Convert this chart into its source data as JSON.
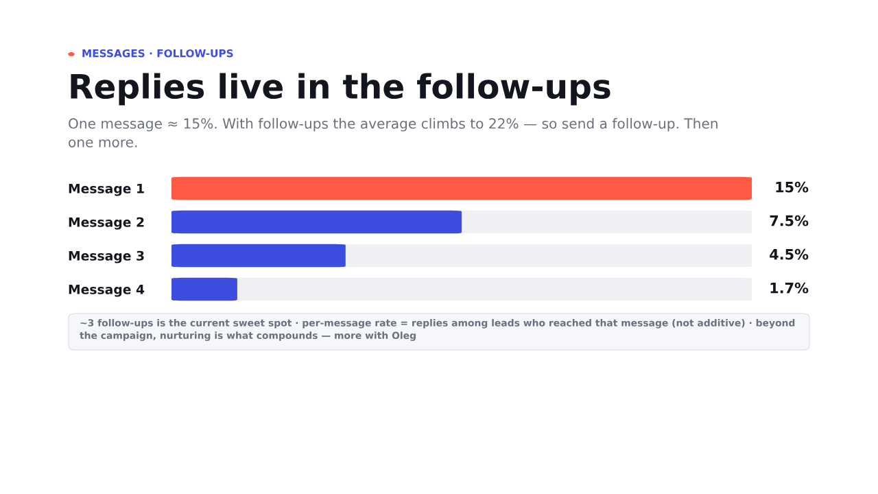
{
  "chart_data": {
    "type": "bar",
    "orientation": "horizontal",
    "title": "Replies live in the follow-ups",
    "subtitle": "One message ≈ 15%. With follow-ups the average climbs to 22% — so send a follow-up. Then one more.",
    "annotations": [
      "MESSAGES · FOLLOW-UPS",
      "~3 follow-ups is the current sweet spot · per-message rate = replies among leads who reached that message (not additive) · beyond the campaign, nurturing is what compounds — more with Oleg"
    ],
    "categories": [
      "Message 1",
      "Message 2",
      "Message 3",
      "Message 4"
    ],
    "values": [
      15,
      7.5,
      4.5,
      1.7
    ],
    "colors": [
      "#ff5a43",
      "#3d4de0",
      "#3d4de0",
      "#3d4de0"
    ],
    "value_labels": [
      "15%",
      "7.5%",
      "4.5%",
      "1.7%"
    ],
    "bands": [
      {
        "axis": "x",
        "from": 0,
        "to": 15,
        "color": "#eff0f4"
      }
    ],
    "xlim": [
      0,
      15
    ],
    "tick_labels": "y"
  }
}
